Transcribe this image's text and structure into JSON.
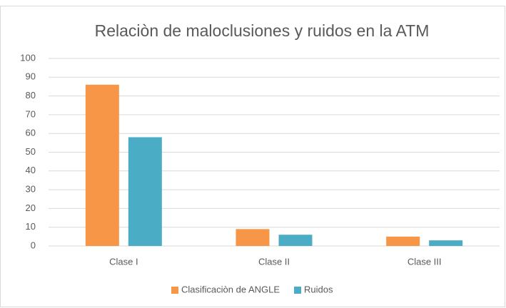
{
  "chart_data": {
    "type": "bar",
    "title": "Relaciòn de maloclusiones y ruidos en la ATM",
    "categories": [
      "Clase I",
      "Clase II",
      "Clase III"
    ],
    "series": [
      {
        "name": "Clasificaciòn de ANGLE",
        "color": "#f79646",
        "values": [
          86,
          9,
          5
        ]
      },
      {
        "name": "Ruidos",
        "color": "#4bacc6",
        "values": [
          58,
          6,
          3
        ]
      }
    ],
    "ylim": [
      0,
      100
    ],
    "yticks": [
      0,
      10,
      20,
      30,
      40,
      50,
      60,
      70,
      80,
      90,
      100
    ],
    "grid": true,
    "legend": "bottom"
  }
}
